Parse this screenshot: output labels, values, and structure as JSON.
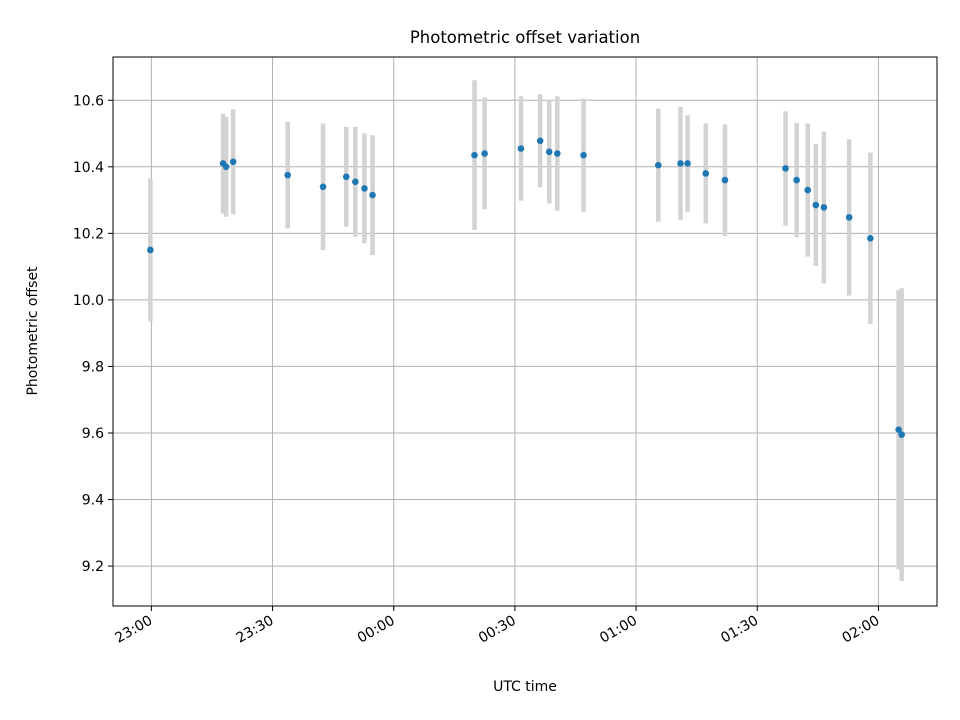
{
  "chart_data": {
    "type": "scatter",
    "title": "Photometric offset variation",
    "xlabel": "UTC time",
    "ylabel": "Photometric offset",
    "x_ticks": [
      "23:00",
      "23:30",
      "00:00",
      "00:30",
      "01:00",
      "01:30",
      "02:00"
    ],
    "y_ticks": [
      "9.2",
      "9.4",
      "9.6",
      "9.8",
      "10.0",
      "10.2",
      "10.4",
      "10.6"
    ],
    "xlim": [
      "22:50:30",
      "02:14:30"
    ],
    "ylim": [
      9.08,
      10.73
    ],
    "grid": true,
    "series": [
      {
        "marker_color": "#1f77b4",
        "errorbar_color": "#d3d3d3",
        "points": [
          {
            "x": "22:59:45",
            "y": 10.15,
            "yerr": 0.215
          },
          {
            "x": "23:17:45",
            "y": 10.41,
            "yerr": 0.15
          },
          {
            "x": "23:18:30",
            "y": 10.4,
            "yerr": 0.15
          },
          {
            "x": "23:20:15",
            "y": 10.415,
            "yerr": 0.158
          },
          {
            "x": "23:33:45",
            "y": 10.375,
            "yerr": 0.16
          },
          {
            "x": "23:42:30",
            "y": 10.34,
            "yerr": 0.19
          },
          {
            "x": "23:48:15",
            "y": 10.37,
            "yerr": 0.15
          },
          {
            "x": "23:50:30",
            "y": 10.355,
            "yerr": 0.165
          },
          {
            "x": "23:52:45",
            "y": 10.335,
            "yerr": 0.165
          },
          {
            "x": "23:54:45",
            "y": 10.315,
            "yerr": 0.18
          },
          {
            "x": "00:20:00",
            "y": 10.435,
            "yerr": 0.225
          },
          {
            "x": "00:22:30",
            "y": 10.44,
            "yerr": 0.168
          },
          {
            "x": "00:31:30",
            "y": 10.455,
            "yerr": 0.157
          },
          {
            "x": "00:36:15",
            "y": 10.478,
            "yerr": 0.14
          },
          {
            "x": "00:38:30",
            "y": 10.445,
            "yerr": 0.155
          },
          {
            "x": "00:40:30",
            "y": 10.44,
            "yerr": 0.172
          },
          {
            "x": "00:47:00",
            "y": 10.435,
            "yerr": 0.17
          },
          {
            "x": "01:05:30",
            "y": 10.405,
            "yerr": 0.17
          },
          {
            "x": "01:11:00",
            "y": 10.41,
            "yerr": 0.17
          },
          {
            "x": "01:12:45",
            "y": 10.41,
            "yerr": 0.145
          },
          {
            "x": "01:17:15",
            "y": 10.38,
            "yerr": 0.15
          },
          {
            "x": "01:22:00",
            "y": 10.36,
            "yerr": 0.168
          },
          {
            "x": "01:37:00",
            "y": 10.395,
            "yerr": 0.172
          },
          {
            "x": "01:39:45",
            "y": 10.36,
            "yerr": 0.172
          },
          {
            "x": "01:42:30",
            "y": 10.33,
            "yerr": 0.2
          },
          {
            "x": "01:44:30",
            "y": 10.285,
            "yerr": 0.183
          },
          {
            "x": "01:46:30",
            "y": 10.278,
            "yerr": 0.228
          },
          {
            "x": "01:52:45",
            "y": 10.248,
            "yerr": 0.235
          },
          {
            "x": "01:58:00",
            "y": 10.185,
            "yerr": 0.258
          },
          {
            "x": "02:05:00",
            "y": 9.61,
            "yerr": 0.42
          },
          {
            "x": "02:05:45",
            "y": 9.595,
            "yerr": 0.44
          }
        ]
      }
    ]
  }
}
